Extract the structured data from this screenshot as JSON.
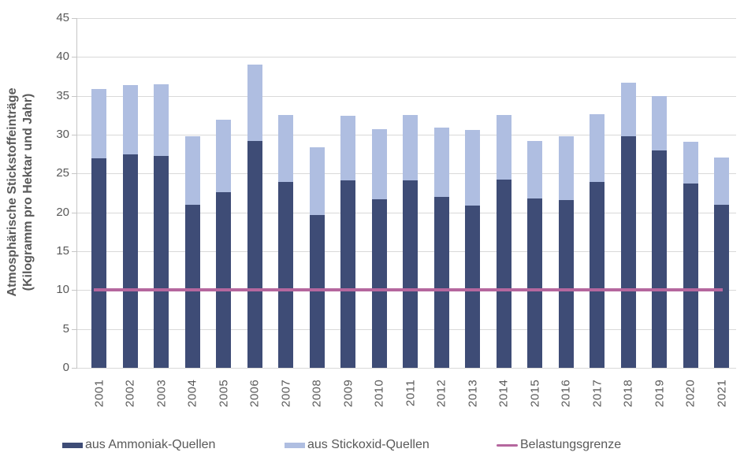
{
  "chart_data": {
    "type": "bar",
    "stacked": true,
    "title": "",
    "ylabel_line1": "Atmosphärische Stickstoffeinträge",
    "ylabel_line2": "(Kilogramm pro Hektar und Jahr)",
    "xlabel": "",
    "categories": [
      "2001",
      "2002",
      "2003",
      "2004",
      "2005",
      "2006",
      "2007",
      "2008",
      "2009",
      "2010",
      "2011",
      "2012",
      "2013",
      "2014",
      "2015",
      "2016",
      "2017",
      "2018",
      "2019",
      "2020",
      "2021"
    ],
    "series": [
      {
        "name": "aus Ammoniak-Quellen",
        "color": "#3E4C76",
        "values": [
          27.0,
          27.5,
          27.3,
          21.0,
          22.6,
          29.2,
          23.9,
          19.7,
          24.1,
          21.7,
          24.1,
          22.0,
          20.9,
          24.2,
          21.8,
          21.6,
          23.9,
          29.8,
          28.0,
          23.7,
          21.0
        ]
      },
      {
        "name": "aus Stickoxid-Quellen",
        "color": "#AFBEE1",
        "values": [
          8.9,
          8.9,
          9.2,
          8.8,
          9.3,
          9.8,
          8.6,
          8.7,
          8.3,
          9.0,
          8.4,
          8.9,
          9.7,
          8.3,
          7.4,
          8.2,
          8.7,
          6.9,
          7.0,
          5.4,
          6.1
        ]
      }
    ],
    "line_series": {
      "name": "Belastungsgrenze",
      "color": "#B5679E",
      "value": 10
    },
    "ylim": [
      0,
      45
    ],
    "y_tick_step": 5,
    "y_ticks": [
      0,
      5,
      10,
      15,
      20,
      25,
      30,
      35,
      40,
      45
    ],
    "grid": true,
    "legend_position": "bottom",
    "colors": {
      "gridline": "#D9D9D9",
      "axis": "#C6C6C6",
      "tick_text": "#595959",
      "title_text": "#595959"
    }
  }
}
